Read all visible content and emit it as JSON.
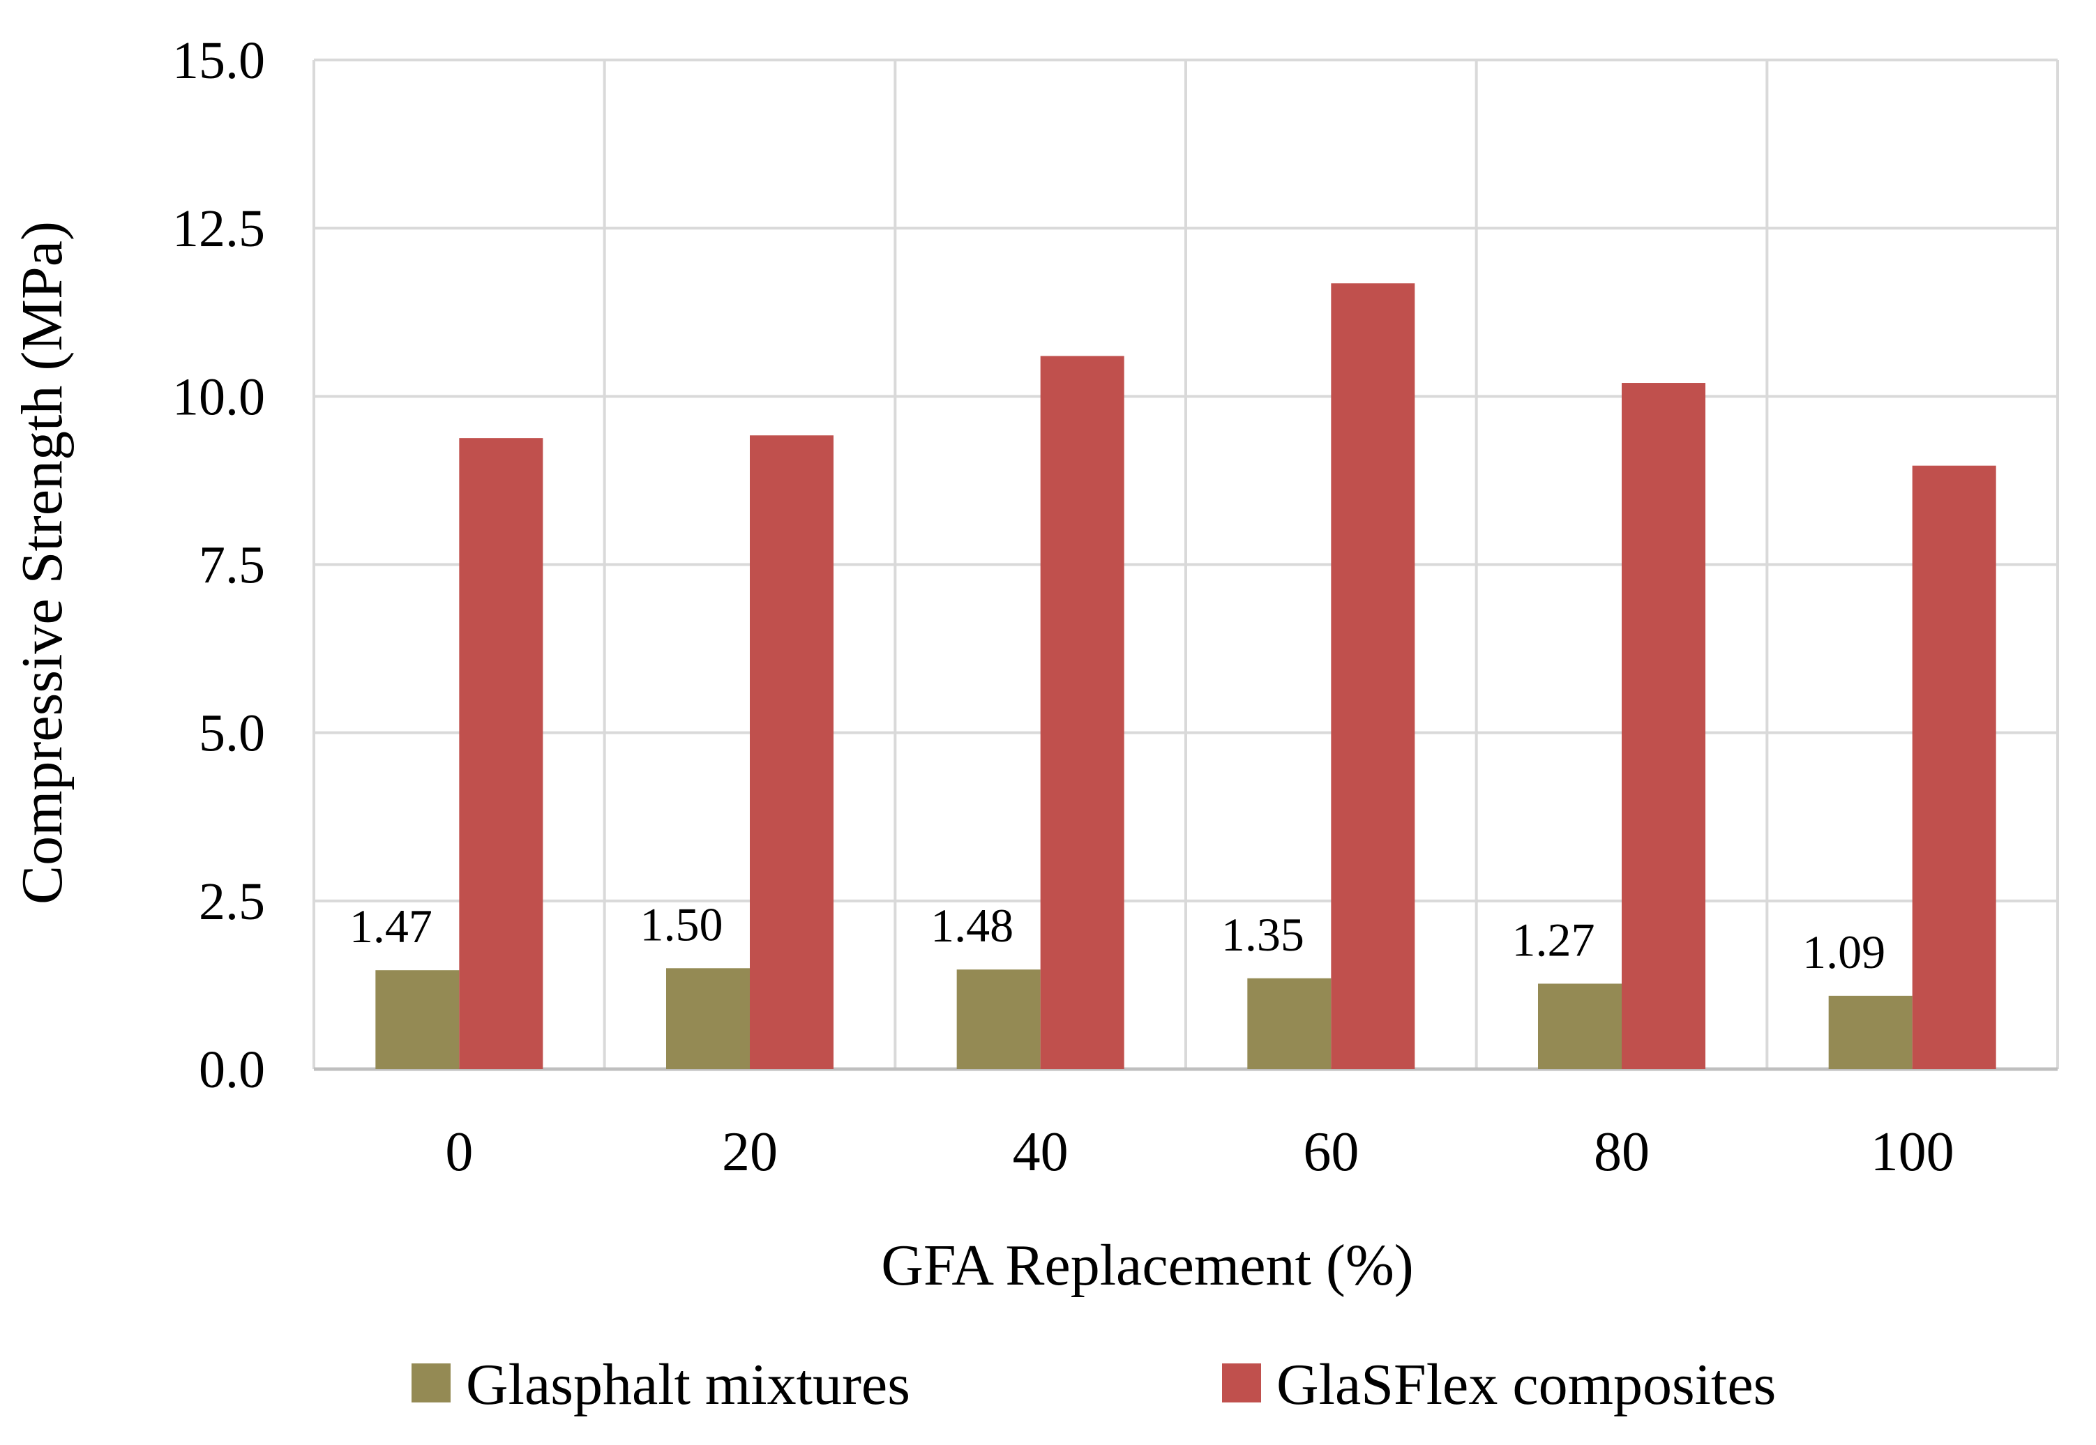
{
  "chart_data": {
    "type": "bar",
    "title": "",
    "xlabel": "GFA Replacement (%)",
    "ylabel": "Compressive Strength (MPa)",
    "categories": [
      "0",
      "20",
      "40",
      "60",
      "80",
      "100"
    ],
    "ylim": [
      0,
      15
    ],
    "yticks": [
      "0.0",
      "2.5",
      "5.0",
      "7.5",
      "10.0",
      "12.5",
      "15.0"
    ],
    "grid": true,
    "legend_position": "bottom",
    "series": [
      {
        "name": "Glasphalt mixtures",
        "color": "#948a54",
        "values": [
          1.47,
          1.5,
          1.48,
          1.35,
          1.27,
          1.09
        ],
        "data_labels": [
          "1.47",
          "1.50",
          "1.48",
          "1.35",
          "1.27",
          "1.09"
        ]
      },
      {
        "name": "GlaSFlex composites",
        "color": "#c0504d",
        "values": [
          9.38,
          9.42,
          10.6,
          11.68,
          10.2,
          8.97
        ]
      }
    ]
  }
}
